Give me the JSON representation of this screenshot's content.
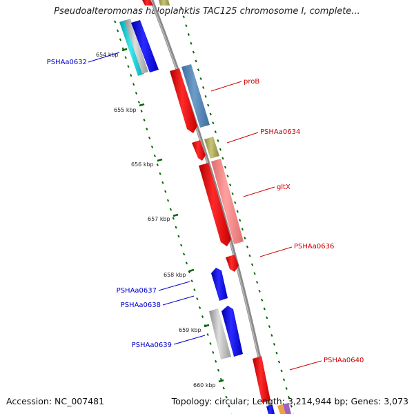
{
  "title": "Pseudoalteromonas haloplanktis TAC125 chromosome I, complete...",
  "footer": {
    "accession": "Accession: NC_007481",
    "stats": "Topology: circular; Length: 3,214,944 bp; Genes: 3,073"
  },
  "ticks": [
    {
      "label": "654 kbp"
    },
    {
      "label": "655 kbp"
    },
    {
      "label": "656 kbp"
    },
    {
      "label": "657 kbp"
    },
    {
      "label": "658 kbp"
    },
    {
      "label": "659 kbp"
    },
    {
      "label": "660 kbp"
    }
  ],
  "genes": [
    {
      "name": "PSHAa0632",
      "strand": "minus",
      "color": "#0000cc"
    },
    {
      "name": "proB",
      "strand": "plus",
      "color": "#cc0000"
    },
    {
      "name": "PSHAa0634",
      "strand": "plus",
      "color": "#cc0000"
    },
    {
      "name": "gltX",
      "strand": "plus",
      "color": "#cc0000"
    },
    {
      "name": "PSHAa0636",
      "strand": "plus",
      "color": "#cc0000"
    },
    {
      "name": "PSHAa0637",
      "strand": "minus",
      "color": "#0000cc"
    },
    {
      "name": "PSHAa0638",
      "strand": "minus",
      "color": "#0000cc"
    },
    {
      "name": "PSHAa0639",
      "strand": "minus",
      "color": "#0000cc"
    },
    {
      "name": "PSHAa0640",
      "strand": "plus",
      "color": "#cc0000"
    }
  ],
  "colors": {
    "backbone": "#808080",
    "tick": "#006600",
    "cds_plus": "#ff0000",
    "cds_minus": "#0000ff",
    "gene_plus": "#cc0000",
    "gene_minus": "#0000cc"
  }
}
